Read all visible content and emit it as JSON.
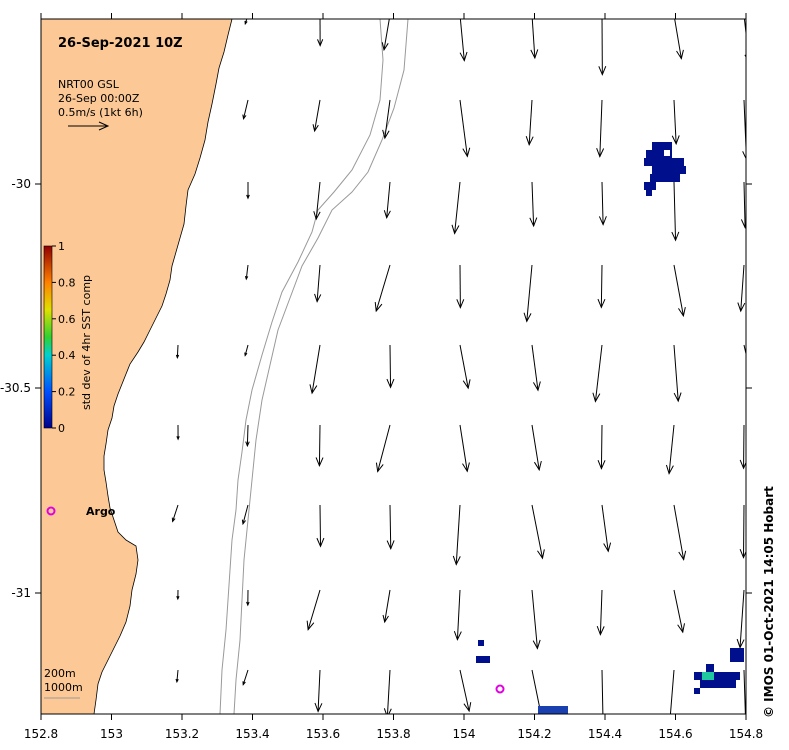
{
  "map": {
    "date_title": "26-Sep-2021 10Z",
    "current_label": "NRT00 GSL",
    "current_time": "26-Sep 00:00Z",
    "scale_label": "0.5m/s (1kt 6h)",
    "colorbar_label": "std dev of 4hr SST comp",
    "colorbar_ticks": [
      "0",
      "0.2",
      "0.4",
      "0.6",
      "0.8",
      "1"
    ],
    "depth_legend": [
      "200m",
      "1000m"
    ],
    "x_ticks": [
      "152.8",
      "153",
      "153.2",
      "153.4",
      "153.6",
      "153.8",
      "154",
      "154.2",
      "154.4",
      "154.6",
      "154.8"
    ],
    "y_ticks": [
      "-30",
      "-30.5",
      "-31"
    ],
    "argo_label": "Argo",
    "credit": "© IMOS 01-Oct-2021 14:05 Hobart",
    "colors": {
      "land": "#fcc996",
      "argo": "#e000e0",
      "sst_low": "#00108c"
    }
  }
}
